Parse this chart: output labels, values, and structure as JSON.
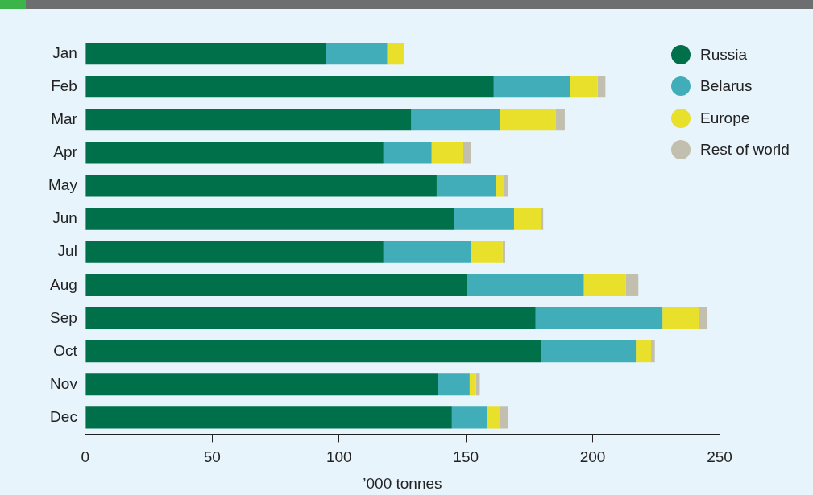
{
  "chart_data": {
    "type": "bar",
    "orientation": "horizontal",
    "stacked": true,
    "xlabel": "’000 tonnes",
    "categories": [
      "Jan",
      "Feb",
      "Mar",
      "Apr",
      "May",
      "Jun",
      "Jul",
      "Aug",
      "Sep",
      "Oct",
      "Nov",
      "Dec"
    ],
    "series": [
      {
        "name": "Russia",
        "color": "#00704a",
        "values": [
          95,
          161,
          128.5,
          117.5,
          138.5,
          145.5,
          117.5,
          150.5,
          177.5,
          179.5,
          139,
          144.5
        ]
      },
      {
        "name": "Belarus",
        "color": "#40adb9",
        "values": [
          24,
          30,
          35,
          19,
          23.5,
          23.5,
          34.5,
          46,
          50,
          37.5,
          12.5,
          14
        ]
      },
      {
        "name": "Europe",
        "color": "#e8e02a",
        "values": [
          6.5,
          11,
          22,
          12.5,
          3,
          10.5,
          12.5,
          16.5,
          14.5,
          6,
          2.5,
          5
        ]
      },
      {
        "name": "Rest of world",
        "color": "#c2bfae",
        "values": [
          null,
          3,
          3.5,
          3,
          1.5,
          1,
          1,
          5,
          3,
          1.5,
          1.5,
          3
        ]
      }
    ],
    "xlim": [
      0,
      250
    ],
    "xticks": [
      0,
      50,
      100,
      150,
      200,
      250
    ],
    "grid": false,
    "legend": "top right"
  }
}
